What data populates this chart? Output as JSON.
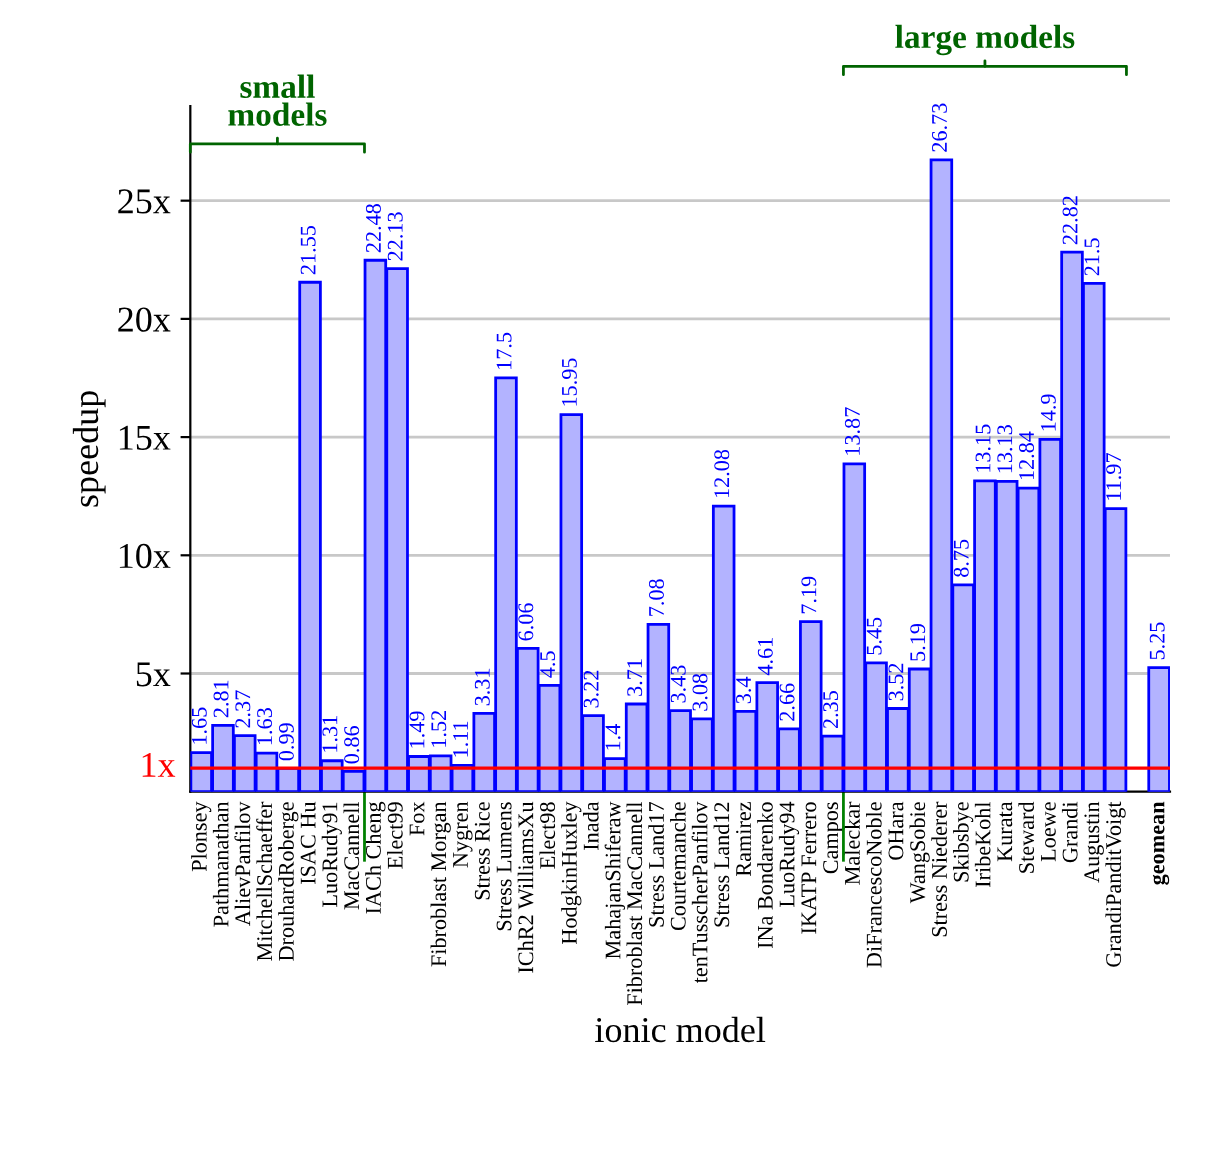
{
  "chart_data": {
    "type": "bar",
    "xlabel": "ionic model",
    "ylabel": "speedup",
    "categories": [
      "Plonsey",
      "Pathmanathan",
      "AlievPanfilov",
      "MitchellSchaeffer",
      "DrouhardRoberge",
      "ISAC Hu",
      "LuoRudy91",
      "MacCannell",
      "IACh Cheng",
      "Elect99",
      "Fox",
      "Fibroblast Morgan",
      "Nygren",
      "Stress Rice",
      "Stress Lumens",
      "IChR2 WilliamsXu",
      "Elect98",
      "HodgkinHuxley",
      "Inada",
      "MahajanShiferaw",
      "Fibroblast MacCannell",
      "Stress Land17",
      "Courtemanche",
      "tenTusscherPanfilov",
      "Stress Land12",
      "Ramirez",
      "INa Bondarenko",
      "LuoRudy94",
      "IKATP Ferrero",
      "Campos",
      "Maleckar",
      "DiFrancescoNoble",
      "OHara",
      "WangSobie",
      "Stress Niederer",
      "Skibsbye",
      "IribeKohl",
      "Kurata",
      "Steward",
      "Loewe",
      "Grandi",
      "Augustin",
      "GrandiPanditVoigt",
      null,
      "geomean"
    ],
    "values": [
      1.65,
      2.81,
      2.37,
      1.63,
      0.99,
      21.55,
      1.31,
      0.86,
      22.48,
      22.13,
      1.49,
      1.52,
      1.11,
      3.31,
      17.5,
      6.06,
      4.5,
      15.95,
      3.22,
      1.4,
      3.71,
      7.08,
      3.43,
      3.08,
      12.08,
      3.4,
      4.61,
      2.66,
      7.19,
      2.35,
      13.87,
      5.45,
      3.52,
      5.19,
      26.73,
      8.75,
      13.15,
      13.13,
      12.84,
      14.9,
      22.82,
      21.5,
      11.97,
      null,
      5.25
    ],
    "color": "#b3b3ff",
    "data_labels": true,
    "ylim": [
      0,
      29
    ],
    "yticks": [
      {
        "value": 5,
        "label": "5x"
      },
      {
        "value": 10,
        "label": "10x"
      },
      {
        "value": 15,
        "label": "15x"
      },
      {
        "value": 20,
        "label": "20x"
      },
      {
        "value": 25,
        "label": "25x"
      }
    ],
    "grid": "y",
    "ref_lines": [
      {
        "axis": "y",
        "value": 1,
        "label": "1x",
        "color": "#ff0000"
      }
    ],
    "annotations": [
      "small\nmodels",
      "large models"
    ]
  }
}
